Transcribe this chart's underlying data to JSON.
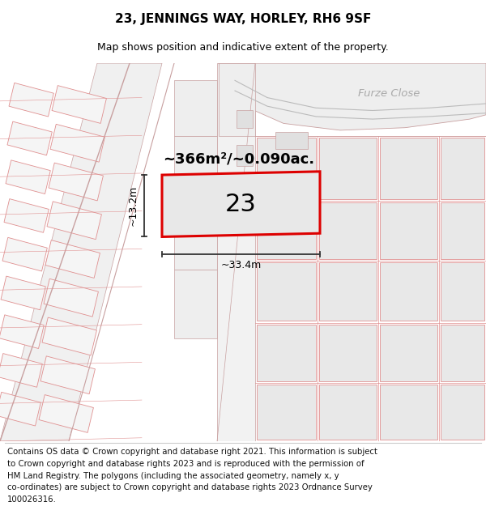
{
  "title": "23, JENNINGS WAY, HORLEY, RH6 9SF",
  "subtitle": "Map shows position and indicative extent of the property.",
  "area_text": "~366m²/~0.090ac.",
  "label_number": "23",
  "dim_width": "~33.4m",
  "dim_height": "~13.2m",
  "furze_close_label": "Furze Close",
  "footer_lines": [
    "Contains OS data © Crown copyright and database right 2021. This information is subject",
    "to Crown copyright and database rights 2023 and is reproduced with the permission of",
    "HM Land Registry. The polygons (including the associated geometry, namely x, y",
    "co-ordinates) are subject to Crown copyright and database rights 2023 Ordnance Survey",
    "100026316."
  ],
  "bg_color": "#ffffff",
  "map_bg": "#f7f7f7",
  "road_bg": "#f0f0f0",
  "block_fill": "#e8e8e8",
  "block_edge": "#e09090",
  "road_edge": "#c8a0a0",
  "plot_fill": "#e8e8e8",
  "plot_border": "#dd0000",
  "dim_color": "#333333",
  "furze_color": "#aaaaaa",
  "title_fs": 11,
  "subtitle_fs": 9,
  "area_fs": 13,
  "label_fs": 22,
  "dim_fs": 9,
  "footer_fs": 7.3
}
